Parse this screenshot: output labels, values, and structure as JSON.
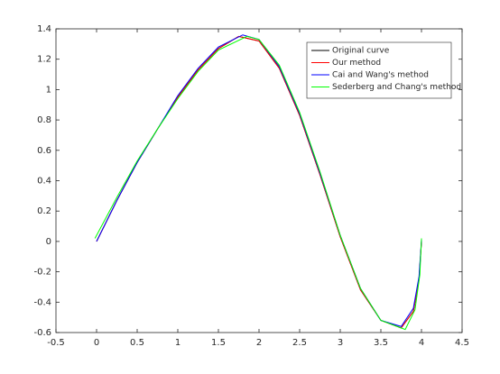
{
  "chart_data": {
    "type": "line",
    "xlim": [
      -0.5,
      4.5
    ],
    "xticks": [
      -0.5,
      0,
      0.5,
      1,
      1.5,
      2,
      2.5,
      3,
      3.5,
      4,
      4.5
    ],
    "ylim": [
      -0.6,
      1.4
    ],
    "yticks": [
      -0.6,
      -0.4,
      -0.2,
      0,
      0.2,
      0.4,
      0.6,
      0.8,
      1,
      1.2,
      1.4
    ],
    "legend": "upper right",
    "series": [
      {
        "name": "Original curve",
        "color": "#000000",
        "x": [
          0,
          0.25,
          0.5,
          0.75,
          1,
          1.25,
          1.5,
          1.75,
          2,
          2.25,
          2.5,
          2.75,
          3,
          3.25,
          3.5,
          3.75,
          3.9,
          3.97,
          4.0
        ],
        "values": [
          0,
          0.27,
          0.52,
          0.74,
          0.95,
          1.13,
          1.27,
          1.35,
          1.32,
          1.14,
          0.83,
          0.44,
          0.03,
          -0.32,
          -0.52,
          -0.57,
          -0.46,
          -0.25,
          0.0
        ]
      },
      {
        "name": "Our method",
        "color": "#ff0000",
        "x": [
          0,
          0.25,
          0.5,
          0.75,
          1,
          1.25,
          1.5,
          1.75,
          2,
          2.25,
          2.5,
          2.75,
          3,
          3.25,
          3.5,
          3.75,
          3.9,
          3.97,
          4.0
        ],
        "values": [
          0,
          0.27,
          0.52,
          0.74,
          0.95,
          1.13,
          1.27,
          1.35,
          1.32,
          1.14,
          0.83,
          0.44,
          0.03,
          -0.32,
          -0.52,
          -0.57,
          -0.46,
          -0.25,
          0.0
        ]
      },
      {
        "name": "Cai and Wang's method",
        "color": "#0000ff",
        "x": [
          0,
          0.25,
          0.5,
          0.75,
          1,
          1.25,
          1.5,
          1.8,
          2,
          2.25,
          2.5,
          2.75,
          3,
          3.25,
          3.5,
          3.75,
          3.9,
          3.97,
          4.0
        ],
        "values": [
          0,
          0.27,
          0.52,
          0.74,
          0.96,
          1.14,
          1.28,
          1.36,
          1.33,
          1.15,
          0.84,
          0.45,
          0.04,
          -0.31,
          -0.52,
          -0.56,
          -0.44,
          -0.23,
          0.01
        ]
      },
      {
        "name": "Sederberg and Chang's method",
        "color": "#00ff00",
        "x": [
          -0.02,
          0.25,
          0.5,
          0.75,
          1,
          1.25,
          1.5,
          1.85,
          2,
          2.25,
          2.5,
          2.75,
          3,
          3.25,
          3.5,
          3.8,
          3.92,
          3.98,
          4.0
        ],
        "values": [
          0.02,
          0.29,
          0.53,
          0.74,
          0.94,
          1.12,
          1.26,
          1.35,
          1.33,
          1.16,
          0.85,
          0.46,
          0.04,
          -0.31,
          -0.52,
          -0.58,
          -0.45,
          -0.22,
          0.02
        ]
      }
    ]
  }
}
